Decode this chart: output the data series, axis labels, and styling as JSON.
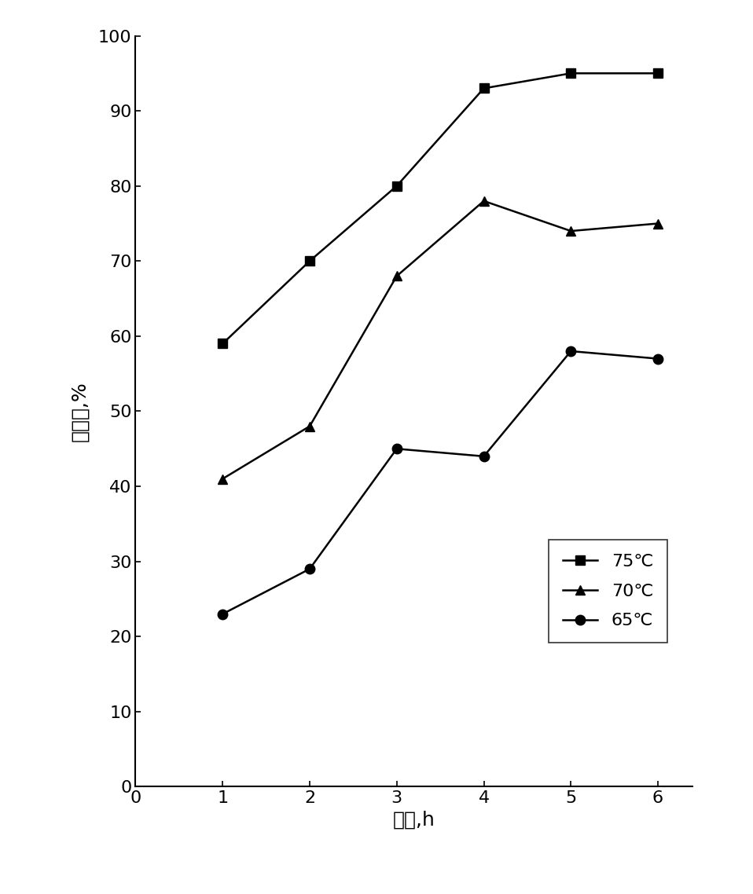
{
  "x": [
    1,
    2,
    3,
    4,
    5,
    6
  ],
  "series_75": [
    59,
    70,
    80,
    93,
    95,
    95
  ],
  "series_70": [
    41,
    48,
    68,
    78,
    74,
    75
  ],
  "series_65": [
    23,
    29,
    45,
    44,
    58,
    57
  ],
  "xlabel": "时间,h",
  "ylabel": "转化率,%",
  "xlim": [
    0,
    6.4
  ],
  "ylim": [
    0,
    100
  ],
  "xticks": [
    0,
    1,
    2,
    3,
    4,
    5,
    6
  ],
  "yticks": [
    0,
    10,
    20,
    30,
    40,
    50,
    60,
    70,
    80,
    90,
    100
  ],
  "legend_labels": [
    "75℃",
    "70℃",
    "65℃"
  ],
  "line_color": "#000000",
  "background_color": "#ffffff",
  "label_fontsize": 18,
  "tick_fontsize": 16,
  "legend_fontsize": 16
}
